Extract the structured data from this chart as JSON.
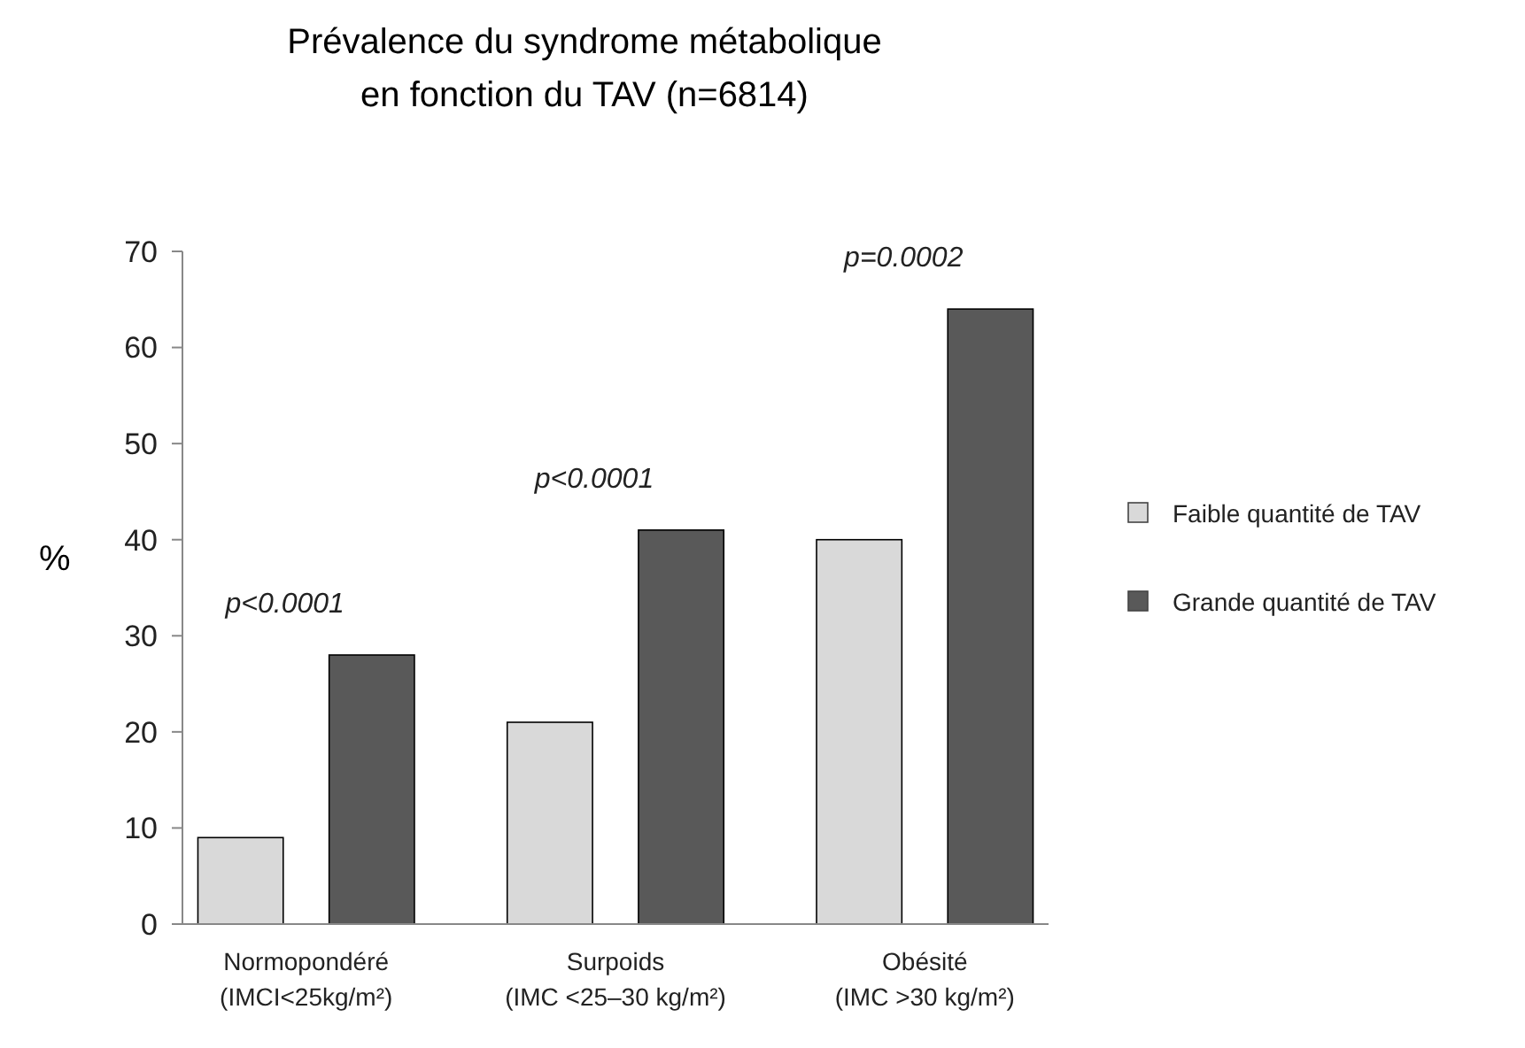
{
  "chart_data": {
    "type": "bar",
    "title": "Prévalence du syndrome métabolique\nen fonction du TAV (n=6814)",
    "ylabel": "%",
    "categories": [
      "Normopondéré\n(IMCI<25kg/m²)",
      "Surpoids\n(IMC <25–30 kg/m²)",
      "Obésité\n(IMC >30 kg/m²)"
    ],
    "series": [
      {
        "name": "Faible quantité de TAV",
        "color": "#d9d9d9",
        "values": [
          9,
          21,
          40
        ]
      },
      {
        "name": "Grande quantité de TAV",
        "color": "#595959",
        "values": [
          28,
          41,
          64
        ]
      }
    ],
    "ylim": [
      0,
      70
    ],
    "yticks": [
      0,
      10,
      20,
      30,
      40,
      50,
      60,
      70
    ],
    "grid": false,
    "legend": "right",
    "annotations": [
      "p<0.0001",
      "p<0.0001",
      "p=0.0002"
    ]
  }
}
